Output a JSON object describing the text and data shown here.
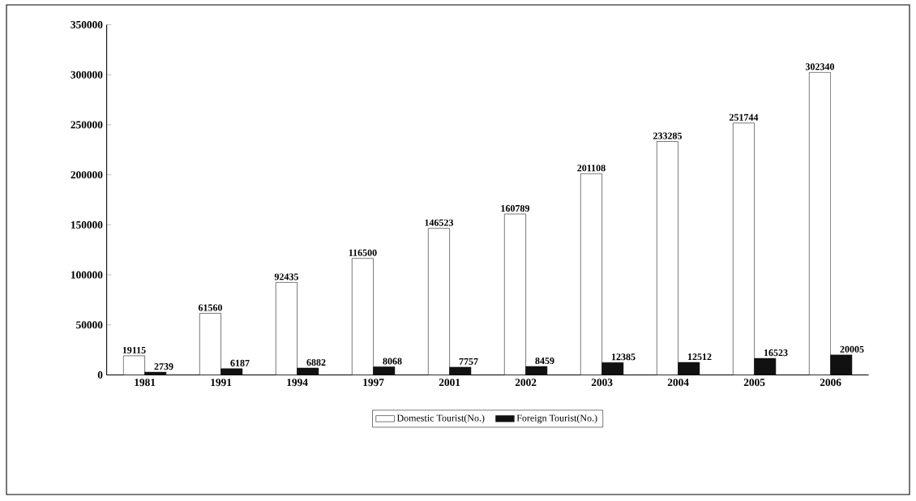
{
  "chart_data": {
    "type": "bar",
    "categories": [
      "1981",
      "1991",
      "1994",
      "1997",
      "2001",
      "2002",
      "2003",
      "2004",
      "2005",
      "2006"
    ],
    "series": [
      {
        "name": "Domestic Tourist(No.)",
        "color": "#ffffff",
        "values": [
          19115,
          61560,
          92435,
          116500,
          146523,
          160789,
          201108,
          233285,
          251744,
          302340
        ]
      },
      {
        "name": "Foreign Tourist(No.)",
        "color": "#111111",
        "values": [
          2739,
          6187,
          6882,
          8068,
          7757,
          8459,
          12385,
          12512,
          16523,
          20005
        ]
      }
    ],
    "ylim": [
      0,
      350000
    ],
    "yticks": [
      0,
      50000,
      100000,
      150000,
      200000,
      250000,
      300000,
      350000
    ],
    "grid": false,
    "legend": "bottom",
    "data_labels": true
  }
}
